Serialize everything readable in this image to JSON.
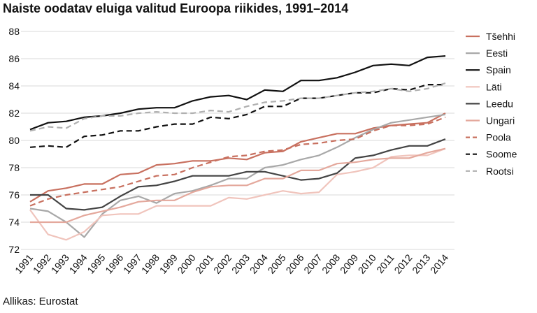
{
  "chart_data": {
    "type": "line",
    "title": "Naiste oodatav eluiga valitud Euroopa riikides, 1991–2014",
    "source": "Allikas: Eurostat",
    "xlabel": "",
    "ylabel": "",
    "ylim": [
      72,
      88
    ],
    "yticks": [
      72,
      74,
      76,
      78,
      80,
      82,
      84,
      86,
      88
    ],
    "categories": [
      "1991",
      "1992",
      "1993",
      "1994",
      "1995",
      "1996",
      "1997",
      "1998",
      "1999",
      "2000",
      "2001",
      "2002",
      "2003",
      "2004",
      "2005",
      "2006",
      "2007",
      "2008",
      "2009",
      "2010",
      "2011",
      "2012",
      "2013",
      "2014"
    ],
    "grid": true,
    "legend_position": "right",
    "series": [
      {
        "name": "Tšehhi",
        "color": "#c8705f",
        "dash": false,
        "values": [
          75.5,
          76.3,
          76.5,
          76.8,
          76.8,
          77.5,
          77.6,
          78.2,
          78.3,
          78.5,
          78.5,
          78.7,
          78.6,
          79.1,
          79.2,
          79.9,
          80.2,
          80.5,
          80.5,
          80.9,
          81.1,
          81.2,
          81.3,
          82.0
        ]
      },
      {
        "name": "Eesti",
        "color": "#a8a8a8",
        "dash": false,
        "values": [
          75.0,
          74.8,
          74.0,
          72.9,
          74.6,
          75.6,
          75.9,
          75.4,
          76.1,
          76.3,
          76.7,
          77.2,
          77.2,
          78.0,
          78.2,
          78.6,
          78.9,
          79.5,
          80.2,
          80.8,
          81.3,
          81.5,
          81.7,
          81.9
        ]
      },
      {
        "name": "Spain",
        "color": "#111111",
        "dash": false,
        "values": [
          80.8,
          81.3,
          81.4,
          81.7,
          81.8,
          82.0,
          82.3,
          82.4,
          82.4,
          82.9,
          83.2,
          83.3,
          83.0,
          83.7,
          83.6,
          84.4,
          84.4,
          84.6,
          85.0,
          85.5,
          85.6,
          85.5,
          86.1,
          86.2
        ]
      },
      {
        "name": "Läti",
        "color": "#f0c4bc",
        "dash": false,
        "values": [
          74.9,
          73.1,
          72.7,
          73.3,
          74.5,
          74.6,
          74.6,
          75.2,
          75.2,
          75.2,
          75.2,
          75.8,
          75.7,
          76.0,
          76.3,
          76.1,
          76.2,
          77.5,
          77.7,
          78.0,
          78.8,
          78.9,
          78.9,
          79.4
        ]
      },
      {
        "name": "Leedu",
        "color": "#444444",
        "dash": false,
        "values": [
          76.0,
          76.0,
          75.0,
          74.9,
          75.1,
          75.9,
          76.6,
          76.7,
          77.0,
          77.4,
          77.4,
          77.4,
          77.7,
          77.7,
          77.4,
          77.1,
          77.2,
          77.6,
          78.7,
          78.9,
          79.3,
          79.6,
          79.6,
          80.1
        ]
      },
      {
        "name": "Ungari",
        "color": "#e4a89c",
        "dash": false,
        "values": [
          74.0,
          74.0,
          74.0,
          74.5,
          74.8,
          75.1,
          75.5,
          75.6,
          75.6,
          76.2,
          76.6,
          76.7,
          76.7,
          77.2,
          77.2,
          77.8,
          77.8,
          78.3,
          78.4,
          78.6,
          78.7,
          78.7,
          79.1,
          79.4
        ]
      },
      {
        "name": "Poola",
        "color": "#c8705f",
        "dash": true,
        "values": [
          75.2,
          75.7,
          76.0,
          76.2,
          76.4,
          76.6,
          77.0,
          77.4,
          77.5,
          78.0,
          78.4,
          78.8,
          78.9,
          79.2,
          79.3,
          79.7,
          79.8,
          80.0,
          80.1,
          80.7,
          81.1,
          81.1,
          81.2,
          81.7
        ]
      },
      {
        "name": "Soome",
        "color": "#111111",
        "dash": true,
        "values": [
          79.5,
          79.6,
          79.5,
          80.3,
          80.4,
          80.7,
          80.7,
          81.0,
          81.2,
          81.2,
          81.7,
          81.6,
          81.9,
          82.5,
          82.5,
          83.1,
          83.1,
          83.3,
          83.5,
          83.5,
          83.8,
          83.7,
          84.1,
          84.1
        ]
      },
      {
        "name": "Rootsi",
        "color": "#b0b0b0",
        "dash": true,
        "values": [
          80.7,
          81.0,
          80.9,
          81.6,
          81.8,
          81.8,
          82.0,
          82.1,
          82.0,
          82.0,
          82.2,
          82.1,
          82.5,
          82.8,
          82.9,
          83.1,
          83.1,
          83.3,
          83.5,
          83.6,
          83.8,
          83.6,
          83.8,
          84.2
        ]
      }
    ]
  }
}
